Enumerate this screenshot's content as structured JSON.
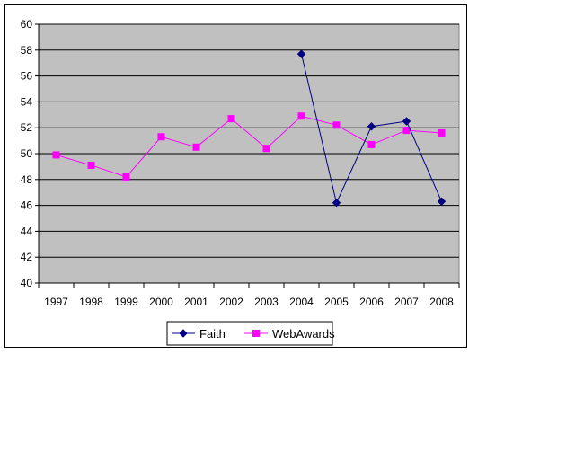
{
  "chart_data": {
    "type": "line",
    "title": "",
    "xlabel": "",
    "ylabel": "",
    "categories": [
      "1997",
      "1998",
      "1999",
      "2000",
      "2001",
      "2002",
      "2003",
      "2004",
      "2005",
      "2006",
      "2007",
      "2008"
    ],
    "ylim": [
      40,
      60
    ],
    "yticks": [
      40,
      42,
      44,
      46,
      48,
      50,
      52,
      54,
      56,
      58,
      60
    ],
    "grid": "horizontal",
    "legend": "bottom",
    "plot_background": "#c0c0c0",
    "series": [
      {
        "name": "Faith",
        "color": "#000080",
        "marker": "diamond",
        "values": [
          null,
          null,
          null,
          null,
          null,
          null,
          null,
          57.7,
          46.2,
          52.1,
          52.5,
          46.3
        ]
      },
      {
        "name": "WebAwards",
        "color": "#ff00ff",
        "marker": "square",
        "values": [
          49.9,
          49.1,
          48.2,
          51.3,
          50.5,
          52.7,
          50.4,
          52.9,
          52.2,
          50.7,
          51.8,
          51.6
        ]
      }
    ]
  }
}
